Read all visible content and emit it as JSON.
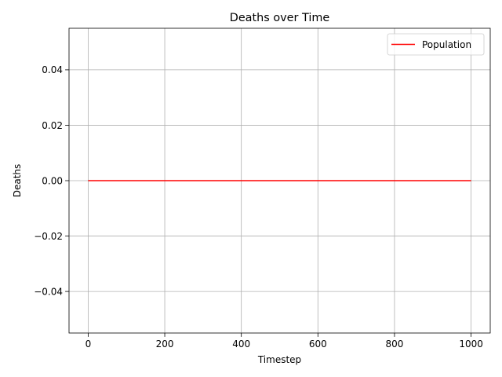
{
  "chart_data": {
    "type": "line",
    "title": "Deaths over Time",
    "xlabel": "Timestep",
    "ylabel": "Deaths",
    "xlim": [
      -50,
      1050
    ],
    "ylim": [
      -0.055,
      0.055
    ],
    "xticks": [
      0,
      200,
      400,
      600,
      800,
      1000
    ],
    "xtick_labels": [
      "0",
      "200",
      "400",
      "600",
      "800",
      "1000"
    ],
    "yticks": [
      -0.04,
      -0.02,
      0.0,
      0.02,
      0.04
    ],
    "ytick_labels": [
      "−0.04",
      "−0.02",
      "0.00",
      "0.02",
      "0.04"
    ],
    "grid": true,
    "legend_position": "top-right",
    "series": [
      {
        "name": "Population",
        "color": "#ff0000",
        "x": [
          0,
          1000
        ],
        "y": [
          0,
          0
        ]
      }
    ]
  }
}
